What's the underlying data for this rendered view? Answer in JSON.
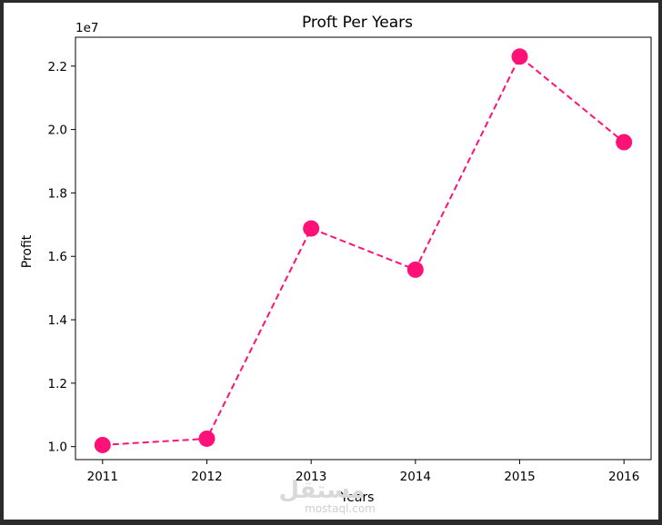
{
  "chart_data": {
    "type": "line",
    "title": "Proft Per Years",
    "xlabel": "Years",
    "ylabel": "Profit",
    "y_offset_label": "1e7",
    "x": [
      2011,
      2012,
      2013,
      2014,
      2015,
      2016
    ],
    "series": [
      {
        "values": [
          10050000,
          10250000,
          16880000,
          15580000,
          22300000,
          19600000
        ]
      }
    ],
    "xticks": [
      "2011",
      "2012",
      "2013",
      "2014",
      "2015",
      "2016"
    ],
    "yticks": [
      {
        "value": 10000000,
        "label": "1.0"
      },
      {
        "value": 12000000,
        "label": "1.2"
      },
      {
        "value": 14000000,
        "label": "1.4"
      },
      {
        "value": 16000000,
        "label": "1.6"
      },
      {
        "value": 18000000,
        "label": "1.8"
      },
      {
        "value": 20000000,
        "label": "2.0"
      },
      {
        "value": 22000000,
        "label": "2.2"
      }
    ],
    "xlim": [
      2010.74,
      2016.26
    ],
    "ylim": [
      9590000,
      22910000
    ],
    "grid": false,
    "line_style": "dashed",
    "marker": "circle",
    "color": "#ff1177"
  },
  "watermark": {
    "main": "مستقل",
    "sub": "mostaql.com"
  }
}
